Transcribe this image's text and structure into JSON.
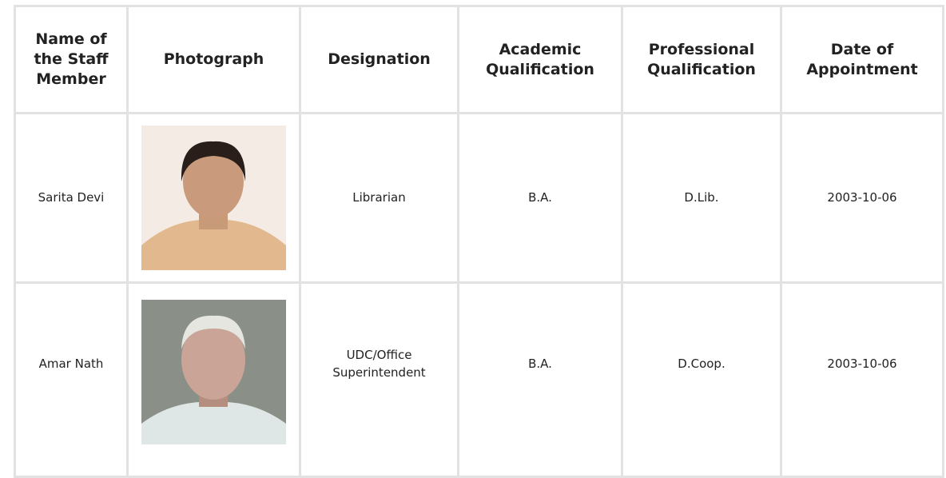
{
  "table": {
    "headers": [
      "Name of the Staff Member",
      "Photograph",
      "Designation",
      "Academic Qualification",
      "Professional Qualification",
      "Date of Appointment"
    ],
    "rows": [
      [
        "Sarita Devi",
        "",
        "Librarian",
        "B.A.",
        "D.Lib.",
        "2003-10-06"
      ],
      [
        "Amar Nath",
        "",
        "UDC/Office Superintendent",
        "B.A.",
        "D.Coop.",
        "2003-10-06"
      ]
    ]
  }
}
